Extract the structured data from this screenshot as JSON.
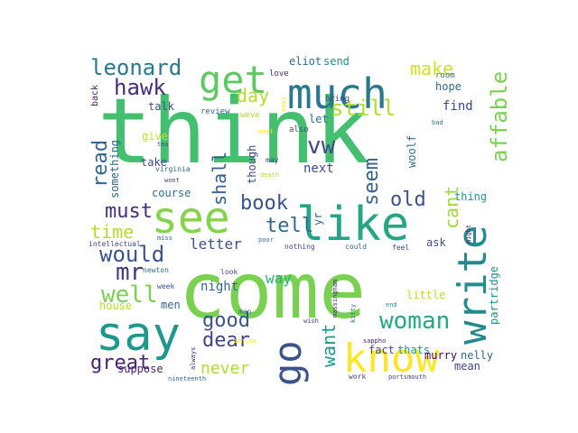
{
  "words": [
    {
      "text": "think",
      "color": "#44bf70"
    },
    {
      "text": "come",
      "color": "#7ad151"
    },
    {
      "text": "say",
      "color": "#1f988b"
    },
    {
      "text": "like",
      "color": "#25a584"
    },
    {
      "text": "see",
      "color": "#84d44b"
    },
    {
      "text": "much",
      "color": "#29788e"
    },
    {
      "text": "get",
      "color": "#5ec962"
    },
    {
      "text": "know",
      "color": "#fde725"
    },
    {
      "text": "write",
      "color": "#238a8d"
    },
    {
      "text": "go",
      "color": "#3b528b"
    },
    {
      "text": "woman",
      "color": "#22a884"
    },
    {
      "text": "leonard",
      "color": "#2a788e"
    },
    {
      "text": "affable",
      "color": "#7ad151"
    },
    {
      "text": "hawk",
      "color": "#472d7b"
    },
    {
      "text": "make",
      "color": "#d2e21b"
    },
    {
      "text": "day",
      "color": "#b5de2b"
    },
    {
      "text": "still",
      "color": "#b5de2b"
    },
    {
      "text": "vw",
      "color": "#3e4a89"
    },
    {
      "text": "seem",
      "color": "#33638d"
    },
    {
      "text": "read",
      "color": "#31688e"
    },
    {
      "text": "shall",
      "color": "#355f8d"
    },
    {
      "text": "book",
      "color": "#3b528b"
    },
    {
      "text": "cant",
      "color": "#a0da39"
    },
    {
      "text": "old",
      "color": "#3b528b"
    },
    {
      "text": "tell",
      "color": "#31688e"
    },
    {
      "text": "must",
      "color": "#472d7b"
    },
    {
      "text": "time",
      "color": "#b5de2b"
    },
    {
      "text": "would",
      "color": "#3b528b"
    },
    {
      "text": "mr",
      "color": "#443983"
    },
    {
      "text": "well",
      "color": "#7ad151"
    },
    {
      "text": "dear",
      "color": "#414487"
    },
    {
      "text": "good",
      "color": "#3b528b"
    },
    {
      "text": "great",
      "color": "#482475"
    },
    {
      "text": "never",
      "color": "#addc30"
    },
    {
      "text": "want",
      "color": "#1f988b"
    },
    {
      "text": "letter",
      "color": "#3b528b"
    },
    {
      "text": "night",
      "color": "#31688e"
    },
    {
      "text": "way",
      "color": "#29af7f"
    },
    {
      "text": "next",
      "color": "#3e4a89"
    },
    {
      "text": "let",
      "color": "#2c728e"
    },
    {
      "text": "find",
      "color": "#3e4a89"
    },
    {
      "text": "eliot",
      "color": "#31688e"
    },
    {
      "text": "send",
      "color": "#23898e"
    },
    {
      "text": "hope",
      "color": "#31688e"
    },
    {
      "text": "talk",
      "color": "#3e4a89"
    },
    {
      "text": "give",
      "color": "#c8e020"
    },
    {
      "text": "take",
      "color": "#414487"
    },
    {
      "text": "course",
      "color": "#2c728e"
    },
    {
      "text": "something",
      "color": "#31688e"
    },
    {
      "text": "though",
      "color": "#3e4a89"
    },
    {
      "text": "yr",
      "color": "#31688e"
    },
    {
      "text": "woolf",
      "color": "#2c728e"
    },
    {
      "text": "thing",
      "color": "#1f988b"
    },
    {
      "text": "ask",
      "color": "#3b528b"
    },
    {
      "text": "partridge",
      "color": "#21918c"
    },
    {
      "text": "little",
      "color": "#b5de2b"
    },
    {
      "text": "house",
      "color": "#b5de2b"
    },
    {
      "text": "men",
      "color": "#31688e"
    },
    {
      "text": "suppose",
      "color": "#482475"
    },
    {
      "text": "fact",
      "color": "#3e4a89"
    },
    {
      "text": "thats",
      "color": "#21918c"
    },
    {
      "text": "murry",
      "color": "#440154"
    },
    {
      "text": "nelly",
      "color": "#31688e"
    },
    {
      "text": "mean",
      "color": "#414487"
    },
    {
      "text": "back",
      "color": "#482475"
    },
    {
      "text": "room",
      "color": "#2c728e"
    },
    {
      "text": "bring",
      "color": "#3e4a89"
    },
    {
      "text": "love",
      "color": "#472d7b"
    },
    {
      "text": "review",
      "color": "#31688e"
    },
    {
      "text": "weve",
      "color": "#addc30"
    },
    {
      "text": "away",
      "color": "#fde725"
    },
    {
      "text": "also",
      "color": "#3e4a89"
    },
    {
      "text": "bad",
      "color": "#2c728e"
    },
    {
      "text": "might",
      "color": "#482475"
    },
    {
      "text": "tea",
      "color": "#3e4a89"
    },
    {
      "text": "meet",
      "color": "#fde725"
    },
    {
      "text": "may",
      "color": "#3e4a89"
    },
    {
      "text": "virginia",
      "color": "#31688e"
    },
    {
      "text": "wont",
      "color": "#414487"
    },
    {
      "text": "death",
      "color": "#b5de2b"
    },
    {
      "text": "intellectual",
      "color": "#3e4a89"
    },
    {
      "text": "miss",
      "color": "#31688e"
    },
    {
      "text": "poor",
      "color": "#2c728e"
    },
    {
      "text": "nothing",
      "color": "#3e4a89"
    },
    {
      "text": "could",
      "color": "#31688e"
    },
    {
      "text": "feel",
      "color": "#3e4a89"
    },
    {
      "text": "newton",
      "color": "#2c728e"
    },
    {
      "text": "look",
      "color": "#3e4a89"
    },
    {
      "text": "massingham",
      "color": "#482475"
    },
    {
      "text": "week",
      "color": "#3e4a89"
    },
    {
      "text": "man",
      "color": "#31688e"
    },
    {
      "text": "kitty",
      "color": "#2c728e"
    },
    {
      "text": "end",
      "color": "#21918c"
    },
    {
      "text": "wish",
      "color": "#414487"
    },
    {
      "text": "duncan",
      "color": "#fde725"
    },
    {
      "text": "sappho",
      "color": "#482475"
    },
    {
      "text": "always",
      "color": "#482475"
    },
    {
      "text": "nineteenth",
      "color": "#31688e"
    },
    {
      "text": "work",
      "color": "#414487"
    },
    {
      "text": "portsmouth",
      "color": "#3e4a89"
    }
  ]
}
